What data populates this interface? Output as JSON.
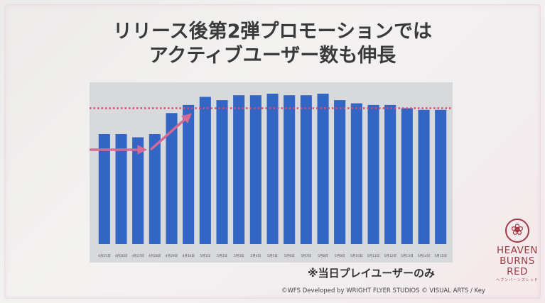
{
  "slide": {
    "title_line1": "リリース後第2弾プロモーションでは",
    "title_line2": "アクティブユーザー数も伸長",
    "note": "※当日プレイユーザーのみ",
    "copyright": "©WFS Developed by WRIGHT FLYER STUDIOS © VISUAL ARTS / Key"
  },
  "logo": {
    "icon": "flower-emblem-icon",
    "line1": "HEAVEN",
    "line2": "BURNS",
    "line3": "RED",
    "sub": "ヘブンバーンズレッド"
  },
  "colors": {
    "bar": "#3366c4",
    "arrow": "#d66a96",
    "reference_line": "#d0507a",
    "panel": "#d8d9db"
  },
  "chart_data": {
    "type": "bar",
    "title": "",
    "xlabel": "",
    "ylabel": "",
    "categories": [
      "4月25日",
      "4月26日",
      "4月27日",
      "4月28日",
      "4月29日",
      "4月30日",
      "5月1日",
      "5月2日",
      "5月3日",
      "5月4日",
      "5月5日",
      "5月6日",
      "5月7日",
      "5月8日",
      "5月9日",
      "5月10日",
      "5月11日",
      "5月12日",
      "5月13日",
      "5月14日",
      "5月15日"
    ],
    "values": [
      68,
      68,
      66,
      68,
      81,
      86,
      91,
      89,
      92,
      92,
      93,
      92,
      92,
      93,
      89,
      87,
      86,
      86,
      84,
      83,
      83
    ],
    "ylim": [
      0,
      100
    ],
    "grid": false,
    "reference_line": 84,
    "trend_arrow": true,
    "y_axis_labels": false
  }
}
